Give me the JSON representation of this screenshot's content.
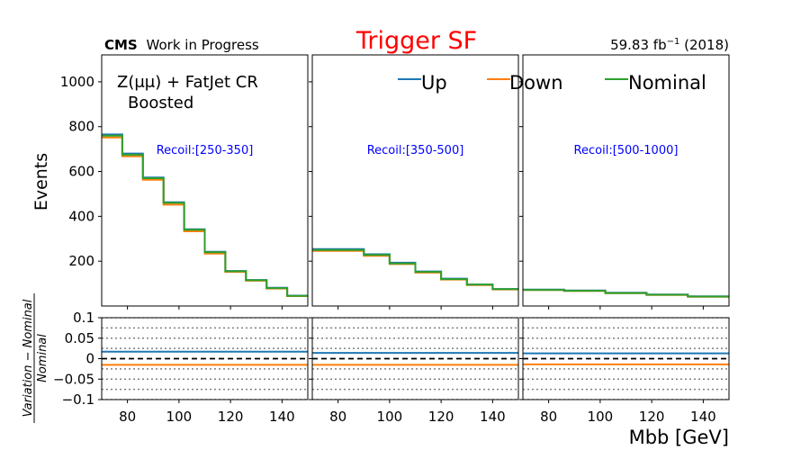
{
  "header": {
    "title": "Trigger SF",
    "experiment": "CMS",
    "status": "Work in Progress",
    "lumi_value": "59.83 fb",
    "lumi_exp": "−1",
    "lumi_year": " (2018)"
  },
  "region": {
    "line1": "Z(μμ) + FatJet CR",
    "line2": "Boosted"
  },
  "colors": {
    "Up": "#1f77b4",
    "Down": "#ff7f0e",
    "Nominal": "#2ca02c",
    "title": "#ff0000",
    "recoil": "#0000ff"
  },
  "chart_data": {
    "type": "line",
    "drawstyle": "step",
    "xlabel": "Mbb [GeV]",
    "ylabel": "Events",
    "ratio_ylabel_num": "Variation − Nominal",
    "ratio_ylabel_den": "Nominal",
    "legend": [
      "Up",
      "Down",
      "Nominal"
    ],
    "legend_position": "top",
    "xlim": [
      70,
      150
    ],
    "ylim": [
      0,
      1120
    ],
    "ratio_ylim": [
      -0.1,
      0.1
    ],
    "yticks": [
      200,
      400,
      600,
      800,
      1000
    ],
    "xticks": [
      80,
      100,
      120,
      140
    ],
    "ratio_yticks": [
      0.1,
      0.05,
      0,
      -0.05,
      -0.1
    ],
    "ratio_ytick_labels": [
      "0.1",
      "0.05",
      "0",
      "−0.05",
      "−0.1"
    ],
    "panels": [
      {
        "label": "Recoil:[250-350]",
        "edges": [
          70,
          78,
          86,
          94,
          102,
          110,
          118,
          126,
          134,
          142,
          150
        ],
        "nominal": [
          760,
          675,
          570,
          460,
          340,
          240,
          155,
          115,
          80,
          45
        ],
        "up": [
          765,
          680,
          573,
          463,
          342,
          242,
          156,
          116,
          81,
          46
        ],
        "down": [
          752,
          668,
          563,
          452,
          333,
          234,
          152,
          113,
          78,
          44
        ],
        "ratio_up": 0.017,
        "ratio_down": -0.015
      },
      {
        "label": "Recoil:[350-500]",
        "edges": [
          70,
          90,
          110,
          130,
          150
        ],
        "edges_detail": [
          70,
          80,
          90,
          100,
          110,
          120,
          130,
          140,
          150
        ],
        "nominal": [
          250,
          250,
          228,
          190,
          152,
          120,
          95,
          75
        ],
        "up": [
          254,
          254,
          231,
          193,
          154,
          122,
          96,
          76
        ],
        "down": [
          246,
          246,
          224,
          187,
          149,
          118,
          93,
          74
        ],
        "ratio_up": 0.014,
        "ratio_down": -0.015
      },
      {
        "label": "Recoil:[500-1000]",
        "edges_detail": [
          70,
          86,
          102,
          118,
          134,
          150
        ],
        "nominal": [
          72,
          68,
          58,
          50,
          42
        ],
        "up": [
          73,
          69,
          59,
          51,
          43
        ],
        "down": [
          71,
          67,
          57,
          49,
          41
        ],
        "ratio_up": 0.013,
        "ratio_down": -0.014
      }
    ]
  }
}
